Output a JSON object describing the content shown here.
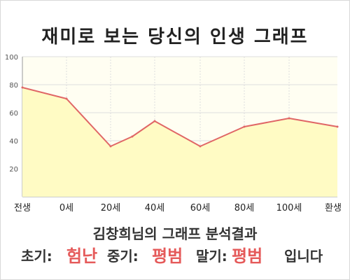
{
  "title": "재미로 보는 당신의 인생 그래프",
  "chart_data": {
    "type": "area",
    "title": "재미로 보는 당신의 인생 그래프",
    "x_labels": [
      "전생",
      "0세",
      "20세",
      "40세",
      "60세",
      "80세",
      "100세",
      "환생"
    ],
    "y_ticks": [
      20,
      40,
      60,
      80,
      100
    ],
    "ylim": [
      0,
      100
    ],
    "grid": true,
    "series": [
      {
        "points": [
          {
            "x": "전생",
            "y": 78
          },
          {
            "x": "0세",
            "y": 70
          },
          {
            "x": "20세",
            "y": 36
          },
          {
            "x": "30세",
            "y": 43
          },
          {
            "x": "40세",
            "y": 54
          },
          {
            "x": "60세",
            "y": 36
          },
          {
            "x": "80세",
            "y": 50
          },
          {
            "x": "100세",
            "y": 56
          },
          {
            "x": "환생",
            "y": 50
          }
        ]
      }
    ],
    "colors": {
      "line": "#e06666",
      "fill": "#fffbc4",
      "plot_bg": "#fffef2",
      "grid": "#dddddd"
    }
  },
  "result": {
    "line1": "김창희님의 그래프 분석결과",
    "early_label": "초기:",
    "early_value": "험난",
    "mid_label": "중기:",
    "mid_value": "평범",
    "late_label": "말기:",
    "late_value": "평범",
    "ending": "입니다"
  }
}
